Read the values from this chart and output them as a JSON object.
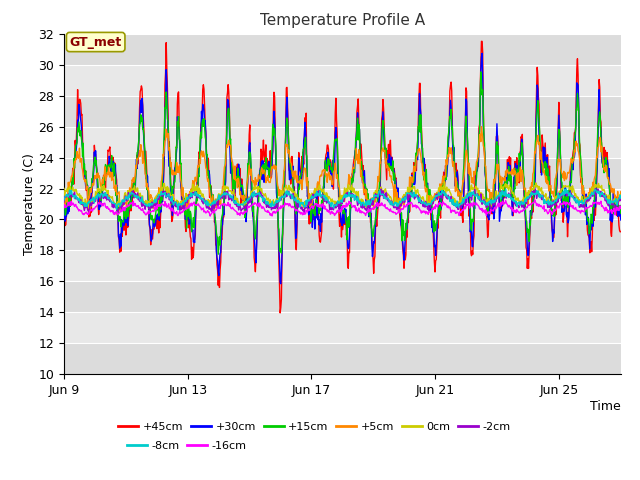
{
  "title": "Temperature Profile A",
  "xlabel": "Time",
  "ylabel": "Temperature (C)",
  "ylim": [
    10,
    32
  ],
  "yticks": [
    10,
    12,
    14,
    16,
    18,
    20,
    22,
    24,
    26,
    28,
    30,
    32
  ],
  "background_color": "#ffffff",
  "plot_bg_color": "#e8e8e8",
  "grid_color": "#ffffff",
  "annotation_text": "GT_met",
  "annotation_bg": "#ffffcc",
  "annotation_border": "#999900",
  "series": [
    {
      "label": "+45cm",
      "color": "#ff0000",
      "lw": 1.0
    },
    {
      "label": "+30cm",
      "color": "#0000ff",
      "lw": 1.0
    },
    {
      "label": "+15cm",
      "color": "#00cc00",
      "lw": 1.0
    },
    {
      "label": "+5cm",
      "color": "#ff8800",
      "lw": 1.0
    },
    {
      "label": "0cm",
      "color": "#cccc00",
      "lw": 1.0
    },
    {
      "label": "-2cm",
      "color": "#9900cc",
      "lw": 1.0
    },
    {
      "label": "-8cm",
      "color": "#00cccc",
      "lw": 1.0
    },
    {
      "label": "-16cm",
      "color": "#ff00ff",
      "lw": 1.0
    }
  ],
  "x_tick_labels": [
    "Jun 9",
    "Jun 13",
    "Jun 17",
    "Jun 21",
    "Jun 25"
  ],
  "x_tick_positions": [
    0,
    4,
    8,
    12,
    16
  ],
  "band_colors": [
    "#dcdcdc",
    "#e8e8e8"
  ]
}
